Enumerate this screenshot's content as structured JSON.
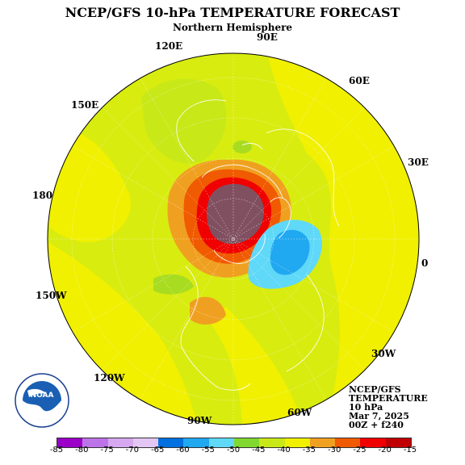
{
  "title": "NCEP/GFS 10-hPa TEMPERATURE FORECAST",
  "subtitle": "Northern Hemisphere",
  "longitude_labels": [
    "90E",
    "120E",
    "60E",
    "150E",
    "30E",
    "180",
    "0",
    "150W",
    "30W",
    "120W",
    "60W",
    "90W"
  ],
  "info": {
    "line1": "NCEP/GFS",
    "line2": "TEMPERATURE",
    "line3": "10 hPa",
    "line4": "Mar 7, 2025",
    "line5": "00Z + f240"
  },
  "logo_text": "NOAA",
  "colorbar": {
    "labels": [
      "-85",
      "-80",
      "-75",
      "-70",
      "-65",
      "-60",
      "-55",
      "-50",
      "-45",
      "-40",
      "-35",
      "-30",
      "-25",
      "-20",
      "-15"
    ],
    "colors": [
      "#9a00c8",
      "#bd73e8",
      "#d6a8f0",
      "#e4c6f4",
      "#0070e0",
      "#20a8f0",
      "#60d8f8",
      "#80d830",
      "#c8e818",
      "#f0f000",
      "#f0a020",
      "#f05a00",
      "#f00000",
      "#c00000",
      "#805060"
    ]
  },
  "chart_data": {
    "type": "heatmap",
    "title": "NCEP/GFS 10-hPa TEMPERATURE FORECAST",
    "subtitle": "Northern Hemisphere",
    "projection": "polar stereographic, Northern Hemisphere",
    "variable": "TEMPERATURE",
    "level": "10 hPa",
    "valid": "Mar 7, 2025 00Z + f240",
    "contour_interval": 5,
    "range": [
      -85,
      -15
    ],
    "legend_levels": [
      -85,
      -80,
      -75,
      -70,
      -65,
      -60,
      -55,
      -50,
      -45,
      -40,
      -35,
      -30,
      -25,
      -20,
      -15
    ],
    "features": [
      {
        "region": "warm anomaly over Arctic / northern Canada",
        "value_range": [
          -25,
          -15
        ]
      },
      {
        "region": "cold pool near Greenland / North Atlantic",
        "value_range": [
          -65,
          -55
        ]
      },
      {
        "region": "background mid-latitudes",
        "value_range": [
          -45,
          -35
        ]
      }
    ]
  }
}
